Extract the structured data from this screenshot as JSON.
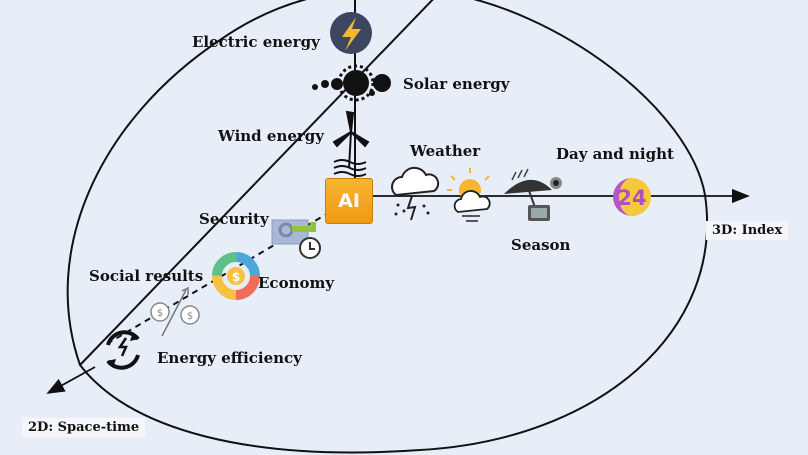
{
  "labels": {
    "electric_energy": "Electric energy",
    "solar_energy": "Solar energy",
    "wind_energy": "Wind energy",
    "weather": "Weather",
    "day_and_night": "Day and night",
    "security": "Security",
    "season": "Season",
    "social_results": "Social results",
    "economy": "Economy",
    "energy_efficiency": "Energy efficiency"
  },
  "axes": {
    "index_3d": "3D: Index",
    "space_time_2d": "2D: Space-time"
  },
  "ai_badge": "AI",
  "clock_24": "24",
  "colors": {
    "background": "#e8eef8",
    "ai_badge": "#f0a020",
    "electric_icon_bg": "#3d4660",
    "lightning": "#f5b731",
    "economy_ring": [
      "#f26b5b",
      "#f5c242",
      "#5fbf8a",
      "#4aa8d8"
    ],
    "day_night_glow": "#f6c93a",
    "day_night_moon": "#b657c9"
  },
  "icons": [
    "lightning-icon",
    "solar-eclipse-icon",
    "wind-turbine-icon",
    "ai-chip-icon",
    "storm-cloud-icon",
    "sun-cloud-icon",
    "season-umbrella-icon",
    "day-night-24-icon",
    "security-key-icon",
    "economy-donut-icon",
    "social-results-icon",
    "energy-cycle-icon"
  ]
}
